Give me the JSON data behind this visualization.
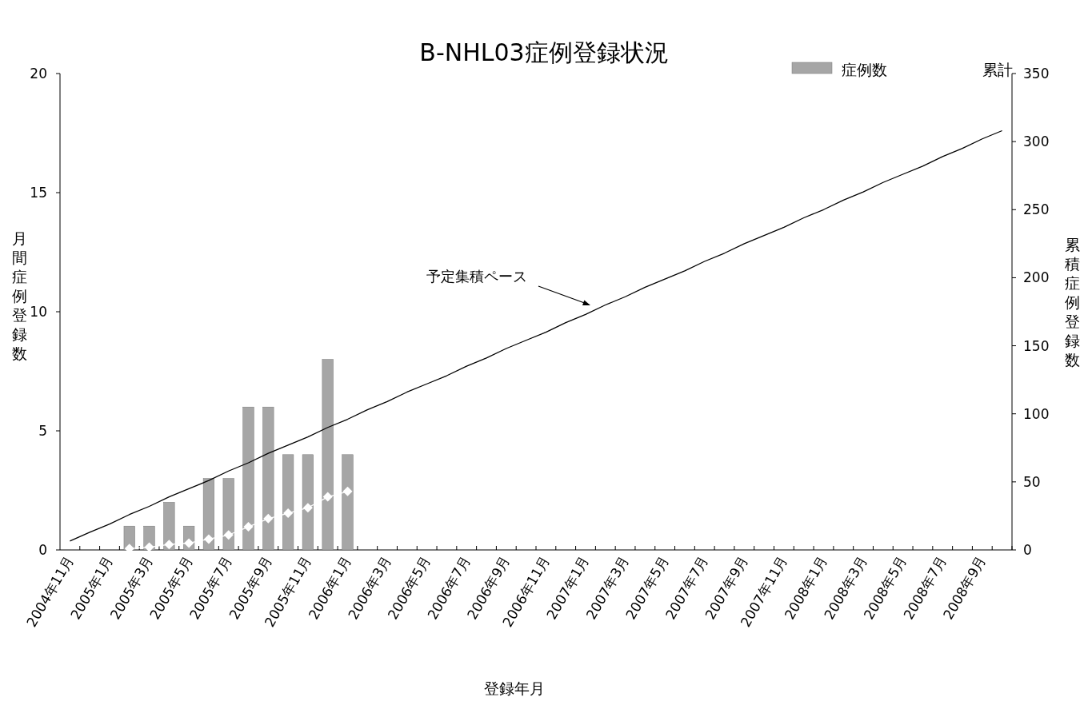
{
  "chart_data": {
    "type": "bar",
    "title": "B-NHL03症例登録状況",
    "xlabel": "登録年月",
    "ylabel": "月間症例登録数",
    "y2label": "累積症例登録数",
    "categories": [
      "2004年11月",
      null,
      "2005年1月",
      null,
      "2005年3月",
      null,
      "2005年5月",
      null,
      "2005年7月",
      null,
      "2005年9月",
      null,
      "2005年11月",
      null,
      "2006年1月",
      null,
      "2006年3月",
      null,
      "2006年5月",
      null,
      "2006年7月",
      null,
      "2006年9月",
      null,
      "2006年11月",
      null,
      "2007年1月",
      null,
      "2007年3月",
      null,
      "2007年5月",
      null,
      "2007年7月",
      null,
      "2007年9月",
      null,
      "2007年11月",
      null,
      "2008年1月",
      null,
      "2008年3月",
      null,
      "2008年5月",
      null,
      "2008年7月",
      null,
      "2008年9月",
      null
    ],
    "series": [
      {
        "name": "症例数",
        "color": "#a6a6a6",
        "values": [
          null,
          null,
          null,
          1,
          1,
          2,
          1,
          3,
          3,
          6,
          6,
          4,
          4,
          8,
          4,
          null,
          null,
          null,
          null,
          null,
          null,
          null,
          null,
          null,
          null,
          null,
          null,
          null,
          null,
          null,
          null,
          null,
          null,
          null,
          null,
          null,
          null,
          null,
          null,
          null,
          null,
          null,
          null,
          null,
          null,
          null,
          null,
          null
        ]
      },
      {
        "name": "累計",
        "type": "line",
        "axis": "y2",
        "color": "#ffffff",
        "marker": "diamond",
        "values": [
          null,
          null,
          null,
          1,
          2,
          4,
          5,
          8,
          11,
          17,
          23,
          27,
          31,
          39,
          43,
          null,
          null,
          null,
          null,
          null,
          null,
          null,
          null,
          null,
          null,
          null,
          null,
          null,
          null,
          null,
          null,
          null,
          null,
          null,
          null,
          null,
          null,
          null,
          null,
          null,
          null,
          null,
          null,
          null,
          null,
          null,
          null,
          null
        ]
      },
      {
        "type": "line",
        "axis": "y2",
        "color": "#000000",
        "marker": "none",
        "values": [
          6.5,
          13,
          19,
          26,
          32,
          39,
          45,
          51,
          58,
          64,
          71,
          77,
          83,
          90,
          96,
          103,
          109,
          116,
          122,
          128,
          135,
          141,
          148,
          154,
          160,
          167,
          173,
          180,
          186,
          193,
          199,
          205,
          212,
          218,
          225,
          231,
          237,
          244,
          250,
          257,
          263,
          270,
          276,
          282,
          289,
          295,
          302,
          308
        ]
      }
    ],
    "ylim": [
      0,
      20
    ],
    "yticks": [
      0,
      5,
      10,
      15,
      20
    ],
    "y2lim": [
      0,
      350
    ],
    "y2ticks": [
      0,
      50,
      100,
      150,
      200,
      250,
      300,
      350
    ],
    "annotations": [
      "予定集積ペース"
    ],
    "grid": false,
    "legend": "top right"
  }
}
